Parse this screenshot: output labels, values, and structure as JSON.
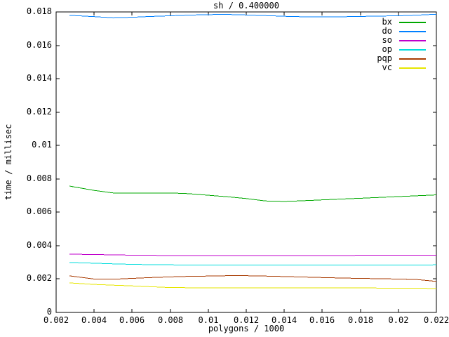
{
  "background": "#ffffff",
  "axis_color": "#000000",
  "chart_data": {
    "type": "line",
    "title": "sh / 0.400000",
    "xlabel": "polygons / 1000",
    "ylabel": "time / millisec",
    "xlim": [
      0.002,
      0.022
    ],
    "ylim": [
      0,
      0.018
    ],
    "grid": false,
    "legend_position": "top-right-inside",
    "x_ticks": [
      {
        "v": 0.002,
        "label": "0.002"
      },
      {
        "v": 0.004,
        "label": "0.004"
      },
      {
        "v": 0.006,
        "label": "0.006"
      },
      {
        "v": 0.008,
        "label": "0.008"
      },
      {
        "v": 0.01,
        "label": "0.01"
      },
      {
        "v": 0.012,
        "label": "0.012"
      },
      {
        "v": 0.014,
        "label": "0.014"
      },
      {
        "v": 0.016,
        "label": "0.016"
      },
      {
        "v": 0.018,
        "label": "0.018"
      },
      {
        "v": 0.02,
        "label": "0.02"
      },
      {
        "v": 0.022,
        "label": "0.022"
      }
    ],
    "y_ticks": [
      {
        "v": 0.0,
        "label": "0"
      },
      {
        "v": 0.002,
        "label": "0.002"
      },
      {
        "v": 0.004,
        "label": "0.004"
      },
      {
        "v": 0.006,
        "label": "0.006"
      },
      {
        "v": 0.008,
        "label": "0.008"
      },
      {
        "v": 0.01,
        "label": "0.01"
      },
      {
        "v": 0.012,
        "label": "0.012"
      },
      {
        "v": 0.014,
        "label": "0.014"
      },
      {
        "v": 0.016,
        "label": "0.016"
      },
      {
        "v": 0.018,
        "label": "0.018"
      }
    ],
    "x": [
      0.0027,
      0.004,
      0.005,
      0.006,
      0.007,
      0.008,
      0.009,
      0.01,
      0.011,
      0.012,
      0.013,
      0.014,
      0.015,
      0.016,
      0.017,
      0.018,
      0.019,
      0.02,
      0.021,
      0.022
    ],
    "series": [
      {
        "name": "bx",
        "color": "#00a800",
        "values": [
          0.00757,
          0.00731,
          0.00716,
          0.00715,
          0.00716,
          0.00716,
          0.00711,
          0.00702,
          0.00693,
          0.00682,
          0.00668,
          0.00665,
          0.00669,
          0.00674,
          0.00679,
          0.00684,
          0.00689,
          0.00694,
          0.00699,
          0.00704
        ]
      },
      {
        "name": "do",
        "color": "#0080ff",
        "values": [
          0.0178,
          0.01772,
          0.01765,
          0.01768,
          0.01773,
          0.01777,
          0.01781,
          0.01784,
          0.01785,
          0.01782,
          0.01778,
          0.01774,
          0.01771,
          0.0177,
          0.01771,
          0.01773,
          0.01775,
          0.01777,
          0.01781,
          0.01786
        ]
      },
      {
        "name": "so",
        "color": "#c000cc",
        "values": [
          0.00349,
          0.00347,
          0.00345,
          0.00343,
          0.00342,
          0.00341,
          0.00341,
          0.0034,
          0.0034,
          0.0034,
          0.0034,
          0.0034,
          0.00341,
          0.00341,
          0.00341,
          0.00342,
          0.00342,
          0.00342,
          0.00343,
          0.00343
        ]
      },
      {
        "name": "op",
        "color": "#00dcdc",
        "values": [
          0.00299,
          0.00295,
          0.00291,
          0.00288,
          0.00286,
          0.00285,
          0.00284,
          0.00284,
          0.00283,
          0.00283,
          0.00283,
          0.00283,
          0.00283,
          0.00283,
          0.00284,
          0.00284,
          0.00284,
          0.00284,
          0.00284,
          0.00285
        ]
      },
      {
        "name": "pqp",
        "color": "#a83a00",
        "values": [
          0.00219,
          0.002,
          0.00199,
          0.00204,
          0.00209,
          0.00213,
          0.00216,
          0.00218,
          0.0022,
          0.0022,
          0.00218,
          0.00215,
          0.00212,
          0.00209,
          0.00206,
          0.00204,
          0.00202,
          0.002,
          0.00197,
          0.00186
        ]
      },
      {
        "name": "vc",
        "color": "#e6e600",
        "values": [
          0.00177,
          0.00168,
          0.00163,
          0.00159,
          0.00154,
          0.00149,
          0.00148,
          0.00148,
          0.00148,
          0.00147,
          0.00147,
          0.00147,
          0.00147,
          0.00147,
          0.00147,
          0.00147,
          0.00146,
          0.00146,
          0.00146,
          0.00142
        ]
      }
    ]
  }
}
